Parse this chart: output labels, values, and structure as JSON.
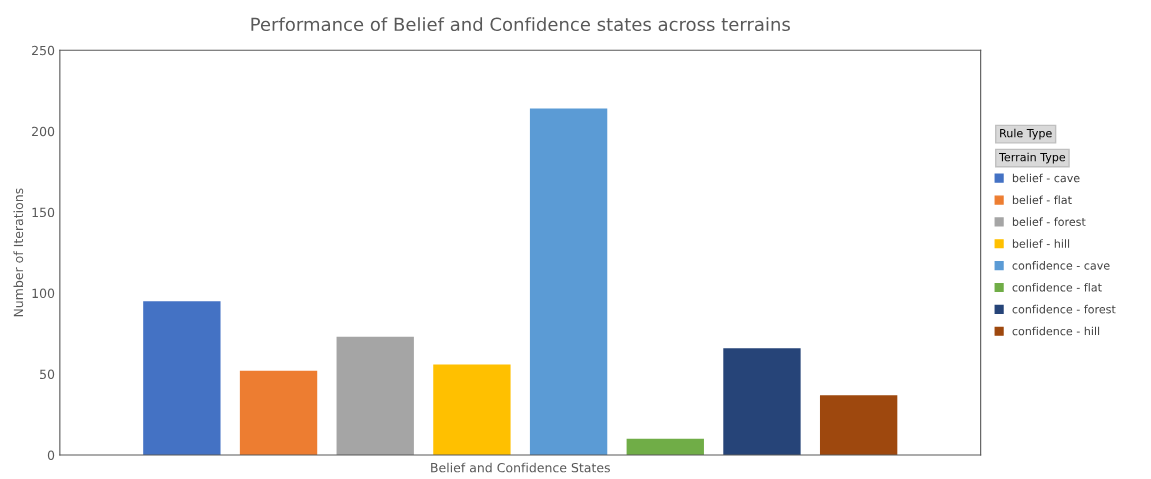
{
  "chart_data": {
    "type": "bar",
    "title": "Performance of Belief and Confidence states across terrains",
    "xlabel": "Belief and Confidence States",
    "ylabel": "Number of Iterations",
    "categories": [
      null
    ],
    "series": [
      {
        "name": "belief - cave",
        "color": "#4472c4",
        "values": [
          95
        ]
      },
      {
        "name": "belief - flat",
        "color": "#ed7d31",
        "values": [
          52
        ]
      },
      {
        "name": "belief - forest",
        "color": "#a5a5a5",
        "values": [
          73
        ]
      },
      {
        "name": "belief - hill",
        "color": "#ffc000",
        "values": [
          56
        ]
      },
      {
        "name": "confidence - cave",
        "color": "#5b9bd5",
        "values": [
          214
        ]
      },
      {
        "name": "confidence - flat",
        "color": "#70ad47",
        "values": [
          10
        ]
      },
      {
        "name": "confidence - forest",
        "color": "#264478",
        "values": [
          66
        ]
      },
      {
        "name": "confidence - hill",
        "color": "#9e480e",
        "values": [
          37
        ]
      }
    ],
    "ylim": [
      0,
      250
    ],
    "yticks": [
      0,
      50,
      100,
      150,
      200,
      250
    ],
    "grid": false,
    "legend": "right",
    "annotations": [
      "Rule Type",
      "Terrain Type"
    ]
  }
}
